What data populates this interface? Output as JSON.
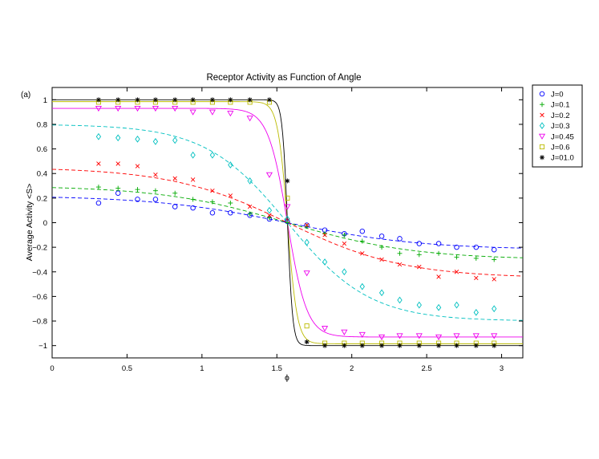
{
  "chart_data": {
    "type": "scatter",
    "title": "Receptor Activity as Function of Angle",
    "panel_label": "(a)",
    "xlabel": "ϕ",
    "ylabel": "Average Activity <S>",
    "xlim": [
      0,
      3.1416
    ],
    "ylim": [
      -1.1,
      1.1
    ],
    "x_ticks": [
      0,
      0.5,
      1,
      1.5,
      2,
      2.5,
      3
    ],
    "x_tick_labels": [
      "0",
      "0.5",
      "1",
      "1.5",
      "2",
      "2.5",
      "3"
    ],
    "y_ticks": [
      -1,
      -0.8,
      -0.6,
      -0.4,
      -0.2,
      0,
      0.2,
      0.4,
      0.6,
      0.8,
      1
    ],
    "y_tick_labels": [
      "−1",
      "−0.8",
      "−0.6",
      "−0.4",
      "−0.2",
      "0",
      "0.2",
      "0.4",
      "0.6",
      "0.8",
      "1"
    ],
    "grid": false,
    "legend_position": "outside-right",
    "sample_x": [
      0.31,
      0.44,
      0.57,
      0.69,
      0.82,
      0.94,
      1.07,
      1.19,
      1.32,
      1.45,
      1.57,
      1.7,
      1.82,
      1.95,
      2.07,
      2.2,
      2.32,
      2.45,
      2.58,
      2.7,
      2.83,
      2.95
    ],
    "series": [
      {
        "name": "J=0",
        "color": "#0000ff",
        "marker": "circle",
        "fit_style": "dashed",
        "fit_a0": 0.22,
        "fit_tau": 0.9,
        "values": [
          0.16,
          0.24,
          0.19,
          0.19,
          0.13,
          0.12,
          0.08,
          0.08,
          0.06,
          0.03,
          0.01,
          -0.02,
          -0.06,
          -0.09,
          -0.07,
          -0.11,
          -0.13,
          -0.17,
          -0.17,
          -0.2,
          -0.2,
          -0.22
        ]
      },
      {
        "name": "J=0.1",
        "color": "#00aa00",
        "marker": "plus",
        "fit_style": "dashed",
        "fit_a0": 0.3,
        "fit_tau": 0.85,
        "values": [
          0.29,
          0.28,
          0.27,
          0.26,
          0.24,
          0.19,
          0.17,
          0.16,
          0.07,
          0.04,
          0.0,
          -0.03,
          -0.09,
          -0.1,
          -0.15,
          -0.2,
          -0.25,
          -0.26,
          -0.25,
          -0.28,
          -0.29,
          -0.3
        ]
      },
      {
        "name": "J=0.2",
        "color": "#ff0000",
        "marker": "cross",
        "fit_style": "dashed",
        "fit_a0": 0.45,
        "fit_tau": 0.78,
        "values": [
          0.48,
          0.48,
          0.46,
          0.39,
          0.36,
          0.35,
          0.26,
          0.22,
          0.13,
          0.06,
          0.02,
          -0.02,
          -0.1,
          -0.17,
          -0.25,
          -0.3,
          -0.34,
          -0.36,
          -0.44,
          -0.4,
          -0.45,
          -0.46
        ]
      },
      {
        "name": "J=0.3",
        "color": "#00c0c0",
        "marker": "diamond",
        "fit_style": "dashed",
        "fit_a0": 0.8,
        "fit_tau": 0.55,
        "values": [
          0.7,
          0.69,
          0.68,
          0.66,
          0.67,
          0.55,
          0.55,
          0.47,
          0.34,
          0.1,
          0.03,
          -0.16,
          -0.32,
          -0.4,
          -0.52,
          -0.57,
          -0.63,
          -0.67,
          -0.69,
          -0.67,
          -0.73,
          -0.7
        ]
      },
      {
        "name": "J=0.45",
        "color": "#ee00ee",
        "marker": "triangle-down",
        "fit_style": "solid",
        "fit_a0": 0.93,
        "fit_tau": 0.13,
        "values": [
          0.93,
          0.93,
          0.93,
          0.93,
          0.93,
          0.9,
          0.9,
          0.89,
          0.85,
          0.39,
          0.13,
          -0.41,
          -0.86,
          -0.89,
          -0.91,
          -0.93,
          -0.92,
          -0.92,
          -0.93,
          -0.92,
          -0.92,
          -0.92
        ]
      },
      {
        "name": "J=0.6",
        "color": "#bbbb00",
        "marker": "square",
        "fit_style": "solid",
        "fit_a0": 0.985,
        "fit_tau": 0.065,
        "values": [
          0.98,
          0.98,
          0.98,
          0.98,
          0.98,
          0.98,
          0.98,
          0.98,
          0.98,
          0.98,
          0.2,
          -0.84,
          -0.98,
          -0.98,
          -0.98,
          -0.98,
          -0.98,
          -0.98,
          -0.98,
          -0.98,
          -0.98,
          -0.98
        ]
      },
      {
        "name": "J=01.0",
        "color": "#000000",
        "marker": "star",
        "fit_style": "solid",
        "fit_a0": 1.0,
        "fit_tau": 0.035,
        "values": [
          1.0,
          1.0,
          1.0,
          1.0,
          1.0,
          1.0,
          1.0,
          1.0,
          1.0,
          1.0,
          0.34,
          -0.97,
          -1.0,
          -1.0,
          -1.0,
          -1.0,
          -1.0,
          -1.0,
          -1.0,
          -1.0,
          -1.0,
          -1.0
        ]
      }
    ]
  }
}
